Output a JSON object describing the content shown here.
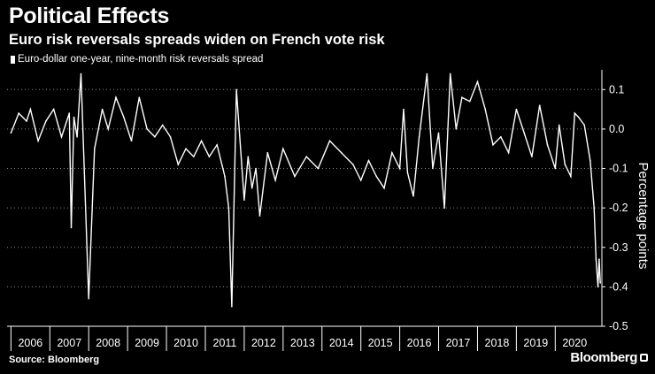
{
  "header": {
    "title": "Political Effects",
    "subtitle": "Euro risk reversals spreads widen on French vote risk"
  },
  "footer": {
    "source": "Source: Bloomberg",
    "brand": "Bloomberg"
  },
  "colors": {
    "background": "#000000",
    "series": "#ffffff",
    "grid": "#8a8a8a"
  },
  "chart_data": {
    "type": "line",
    "title": "Political Effects",
    "subtitle": "Euro risk reversals spreads widen on French vote risk",
    "xlabel": "",
    "ylabel": "Percentage points",
    "ylim": [
      -0.5,
      0.15
    ],
    "xlim": [
      2005.9,
      2021.2
    ],
    "yticks": [
      0.1,
      0.0,
      -0.1,
      -0.2,
      -0.3,
      -0.4,
      -0.5
    ],
    "ytick_labels": [
      "0.1",
      "0.0",
      "-0.1",
      "-0.2",
      "-0.3",
      "-0.4",
      "-0.5"
    ],
    "xtick_labels": [
      "2006",
      "2007",
      "2008",
      "2009",
      "2010",
      "2011",
      "2012",
      "2013",
      "2014",
      "2015",
      "2016",
      "2017",
      "2018",
      "2019",
      "2020"
    ],
    "grid": "horizontal dotted",
    "legend_position": "top-left",
    "series": [
      {
        "name": "Euro-dollar one-year, nine-month risk reversals spread",
        "x": [
          2006.0,
          2006.2,
          2006.4,
          2006.5,
          2006.7,
          2006.9,
          2007.1,
          2007.3,
          2007.5,
          2007.55,
          2007.62,
          2007.7,
          2007.8,
          2008.0,
          2008.15,
          2008.35,
          2008.5,
          2008.7,
          2008.9,
          2009.1,
          2009.3,
          2009.5,
          2009.7,
          2009.9,
          2010.1,
          2010.3,
          2010.5,
          2010.7,
          2010.9,
          2011.1,
          2011.3,
          2011.5,
          2011.6,
          2011.68,
          2011.8,
          2012.0,
          2012.1,
          2012.2,
          2012.3,
          2012.4,
          2012.6,
          2012.8,
          2013.0,
          2013.3,
          2013.6,
          2013.9,
          2014.2,
          2014.5,
          2014.8,
          2015.0,
          2015.2,
          2015.4,
          2015.6,
          2015.8,
          2016.0,
          2016.1,
          2016.2,
          2016.35,
          2016.5,
          2016.7,
          2016.85,
          2017.0,
          2017.15,
          2017.3,
          2017.45,
          2017.6,
          2017.8,
          2018.0,
          2018.2,
          2018.4,
          2018.6,
          2018.8,
          2019.0,
          2019.2,
          2019.4,
          2019.6,
          2019.8,
          2020.0,
          2020.1,
          2020.25,
          2020.4,
          2020.5,
          2020.6,
          2020.75,
          2020.9,
          2021.0,
          2021.05,
          2021.1,
          2021.13,
          2021.16
        ],
        "values": [
          -0.01,
          0.04,
          0.02,
          0.05,
          -0.03,
          0.02,
          0.05,
          -0.02,
          0.04,
          -0.25,
          0.03,
          -0.02,
          0.14,
          -0.43,
          -0.05,
          0.05,
          0.0,
          0.08,
          0.03,
          -0.03,
          0.08,
          0.0,
          -0.02,
          0.01,
          -0.02,
          -0.09,
          -0.05,
          -0.07,
          -0.03,
          -0.07,
          -0.04,
          -0.12,
          -0.2,
          -0.45,
          0.1,
          -0.18,
          -0.07,
          -0.15,
          -0.1,
          -0.22,
          -0.06,
          -0.13,
          -0.05,
          -0.12,
          -0.07,
          -0.1,
          -0.03,
          -0.06,
          -0.09,
          -0.13,
          -0.08,
          -0.12,
          -0.15,
          -0.06,
          -0.1,
          0.05,
          -0.11,
          -0.17,
          -0.02,
          0.14,
          -0.1,
          -0.01,
          -0.2,
          0.14,
          0.0,
          0.08,
          0.07,
          0.12,
          0.05,
          -0.04,
          -0.02,
          -0.06,
          0.05,
          -0.01,
          -0.07,
          0.06,
          -0.04,
          -0.1,
          0.01,
          -0.09,
          -0.12,
          0.04,
          0.03,
          0.01,
          -0.08,
          -0.2,
          -0.33,
          -0.4,
          -0.33,
          -0.39
        ]
      }
    ]
  }
}
